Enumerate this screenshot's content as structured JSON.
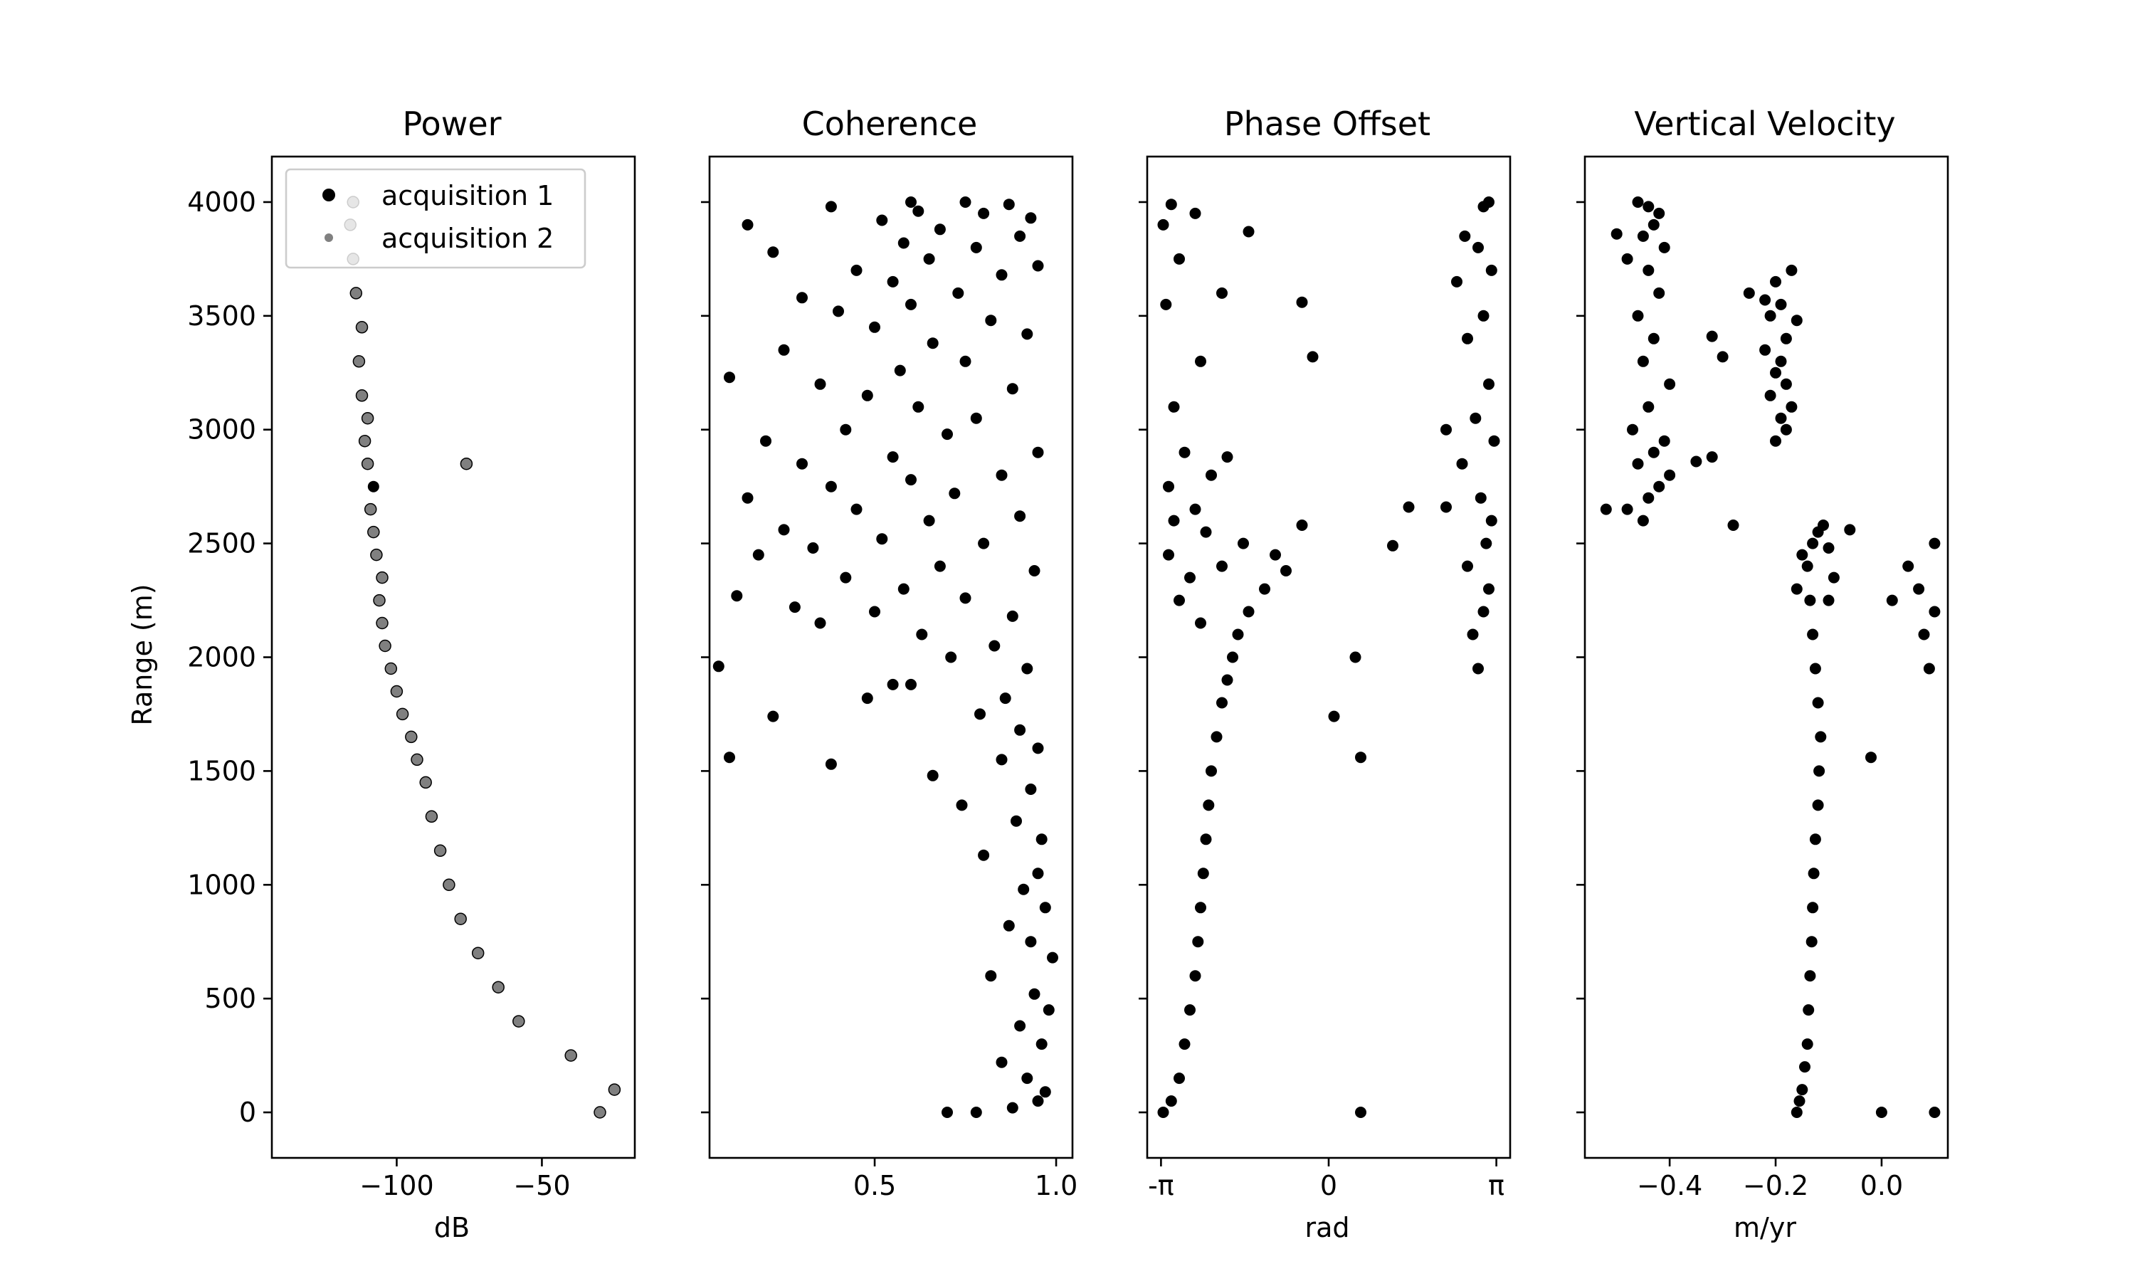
{
  "chart_data": [
    {
      "type": "scatter",
      "title": "Power",
      "xlabel": "dB",
      "ylabel": "Range (m)",
      "xlim": [
        -143,
        -18
      ],
      "ylim": [
        4200,
        -200
      ],
      "xticks": [
        -100,
        -50
      ],
      "xtick_labels": [
        "−100",
        "−50"
      ],
      "yticks": [
        0,
        500,
        1000,
        1500,
        2000,
        2500,
        3000,
        3500,
        4000
      ],
      "ytick_labels": [
        "0",
        "500",
        "1000",
        "1500",
        "2000",
        "2500",
        "3000",
        "3500",
        "4000"
      ],
      "legend": {
        "position": "top-left",
        "entries": [
          "acquisition 1",
          "acquisition 2"
        ]
      },
      "colors": {
        "acquisition 1": "#000000",
        "acquisition 2": "#808080"
      },
      "series": [
        {
          "name": "acquisition 1",
          "x": [
            -30,
            -25,
            -40,
            -58,
            -65,
            -72,
            -78,
            -82,
            -85,
            -88,
            -90,
            -93,
            -95,
            -98,
            -100,
            -102,
            -104,
            -105,
            -106,
            -105,
            -107,
            -108,
            -109,
            -108,
            -110,
            -111,
            -110,
            -112,
            -113,
            -112,
            -114,
            -115,
            -116,
            -115
          ],
          "y": [
            0,
            100,
            250,
            400,
            550,
            700,
            850,
            1000,
            1150,
            1300,
            1450,
            1550,
            1650,
            1750,
            1850,
            1950,
            2050,
            2150,
            2250,
            2350,
            2450,
            2550,
            2650,
            2750,
            2850,
            2950,
            3050,
            3150,
            3300,
            3450,
            3600,
            3750,
            3900,
            4000
          ]
        },
        {
          "name": "acquisition 2",
          "x": [
            -30,
            -25,
            -40,
            -58,
            -65,
            -72,
            -78,
            -82,
            -85,
            -88,
            -90,
            -93,
            -95,
            -98,
            -100,
            -102,
            -104,
            -105,
            -106,
            -105,
            -107,
            -108,
            -109,
            -76,
            -110,
            -111,
            -110,
            -112,
            -113,
            -112,
            -114,
            -115,
            -116,
            -115
          ],
          "y": [
            0,
            100,
            250,
            400,
            550,
            700,
            850,
            1000,
            1150,
            1300,
            1450,
            1550,
            1650,
            1750,
            1850,
            1950,
            2050,
            2150,
            2250,
            2350,
            2450,
            2550,
            2650,
            2850,
            2850,
            2950,
            3050,
            3150,
            3300,
            3450,
            3600,
            3750,
            3900,
            4000
          ]
        }
      ]
    },
    {
      "type": "scatter",
      "title": "Coherence",
      "xlabel": "",
      "ylabel": "",
      "xlim": [
        0.045,
        1.045
      ],
      "ylim": [
        4200,
        -200
      ],
      "xticks": [
        0.5,
        1.0
      ],
      "xtick_labels": [
        "0.5",
        "1.0"
      ],
      "yticks": [
        0,
        500,
        1000,
        1500,
        2000,
        2500,
        3000,
        3500,
        4000
      ],
      "series": [
        {
          "name": "",
          "x": [
            0.7,
            0.78,
            0.88,
            0.95,
            0.97,
            0.92,
            0.85,
            0.96,
            0.9,
            0.98,
            0.94,
            0.82,
            0.99,
            0.93,
            0.87,
            0.97,
            0.91,
            0.95,
            0.8,
            0.96,
            0.89,
            0.74,
            0.93,
            0.66,
            0.85,
            0.95,
            0.9,
            0.79,
            0.86,
            0.6,
            0.38,
            0.1,
            0.92,
            0.71,
            0.48,
            0.55,
            0.83,
            0.22,
            0.63,
            0.35,
            0.88,
            0.5,
            0.07,
            0.28,
            0.75,
            0.12,
            0.58,
            0.42,
            0.94,
            0.68,
            0.18,
            0.33,
            0.8,
            0.52,
            0.25,
            0.65,
            0.9,
            0.45,
            0.15,
            0.72,
            0.38,
            0.6,
            0.85,
            0.3,
            0.55,
            0.95,
            0.2,
            0.7,
            0.42,
            0.78,
            0.1,
            0.62,
            0.48,
            0.88,
            0.35,
            0.57,
            0.75,
            0.25,
            0.66,
            0.92,
            0.5,
            0.82,
            0.4,
            0.6,
            0.3,
            0.73,
            0.55,
            0.85,
            0.45,
            0.95,
            0.65,
            0.22,
            0.78,
            0.58,
            0.9,
            0.68,
            0.15,
            0.52,
            0.8,
            0.62,
            0.38,
            0.87,
            0.75,
            0.6,
            0.93
          ],
          "y": [
            0,
            0,
            20,
            50,
            90,
            150,
            220,
            300,
            380,
            450,
            520,
            600,
            680,
            750,
            820,
            900,
            980,
            1050,
            1130,
            1200,
            1280,
            1350,
            1420,
            1480,
            1550,
            1600,
            1680,
            1750,
            1820,
            1880,
            1530,
            1560,
            1950,
            2000,
            1820,
            1880,
            2050,
            1740,
            2100,
            2150,
            2180,
            2200,
            1960,
            2220,
            2260,
            2270,
            2300,
            2350,
            2380,
            2400,
            2450,
            2480,
            2500,
            2520,
            2560,
            2600,
            2620,
            2650,
            2700,
            2720,
            2750,
            2780,
            2800,
            2850,
            2880,
            2900,
            2950,
            2980,
            3000,
            3050,
            3230,
            3100,
            3150,
            3180,
            3200,
            3260,
            3300,
            3350,
            3380,
            3420,
            3450,
            3480,
            3520,
            3550,
            3580,
            3600,
            3650,
            3680,
            3700,
            3720,
            3750,
            3780,
            3800,
            3820,
            3850,
            3880,
            3900,
            3920,
            3950,
            3960,
            3980,
            3990,
            4000,
            4000,
            3930
          ]
        }
      ]
    },
    {
      "type": "scatter",
      "title": "Phase Offset",
      "xlabel": "rad",
      "ylabel": "",
      "xlim": [
        -3.4,
        3.4
      ],
      "ylim": [
        4200,
        -200
      ],
      "xticks": [
        -3.14159,
        0,
        3.14159
      ],
      "xtick_labels": [
        "-π",
        "0",
        "π"
      ],
      "yticks": [
        0,
        500,
        1000,
        1500,
        2000,
        2500,
        3000,
        3500,
        4000
      ],
      "series": [
        {
          "name": "",
          "x": [
            -3.1,
            -2.95,
            -2.8,
            -2.7,
            -2.6,
            -2.5,
            -2.45,
            -2.4,
            -2.35,
            -2.3,
            -2.25,
            -2.2,
            -2.1,
            -2.0,
            -1.9,
            -1.8,
            -1.7,
            -2.4,
            -1.5,
            -2.8,
            -1.2,
            -2.6,
            -2.0,
            -3.0,
            -1.6,
            -2.3,
            -1.0,
            -2.9,
            -0.8,
            -2.5,
            0.6,
            2.8,
            0.1,
            0.5,
            2.7,
            2.9,
            3.0,
            2.6,
            2.95,
            -0.5,
            1.5,
            1.2,
            -3.0,
            -2.2,
            2.85,
            3.05,
            -2.7,
            2.5,
            3.1,
            -1.9,
            -0.3,
            2.2,
            -2.9,
            2.75,
            3.0,
            -2.4,
            2.6,
            2.9,
            -3.05,
            -2.0,
            -0.5,
            2.4,
            3.05,
            -2.8,
            2.8,
            2.55,
            -3.1,
            -2.5,
            -1.5,
            2.9,
            3.0,
            -2.95,
            0.6,
            2.2
          ],
          "y": [
            0,
            50,
            150,
            300,
            450,
            600,
            750,
            900,
            1050,
            1200,
            1350,
            1500,
            1650,
            1800,
            1900,
            2000,
            2100,
            2150,
            2200,
            2250,
            2300,
            2350,
            2400,
            2450,
            2500,
            2550,
            2450,
            2600,
            2380,
            2650,
            1560,
            1950,
            1740,
            2000,
            2100,
            2200,
            2300,
            2400,
            2500,
            2580,
            2660,
            2490,
            2750,
            2800,
            2700,
            2600,
            2900,
            2850,
            2950,
            2880,
            3320,
            3000,
            3100,
            3050,
            3200,
            3300,
            3400,
            3500,
            3550,
            3600,
            3560,
            3650,
            3700,
            3750,
            3800,
            3850,
            3900,
            3950,
            3870,
            3980,
            4000,
            3990,
            0,
            2660
          ]
        }
      ]
    },
    {
      "type": "scatter",
      "title": "Vertical Velocity",
      "xlabel": "m/yr",
      "ylabel": "",
      "xlim": [
        -0.56,
        0.125
      ],
      "ylim": [
        4200,
        -200
      ],
      "xticks": [
        -0.4,
        -0.2,
        0.0
      ],
      "xtick_labels": [
        "−0.4",
        "−0.2",
        "0.0"
      ],
      "yticks": [
        0,
        500,
        1000,
        1500,
        2000,
        2500,
        3000,
        3500,
        4000
      ],
      "series": [
        {
          "name": "",
          "x": [
            -0.16,
            -0.155,
            -0.15,
            -0.145,
            -0.14,
            -0.138,
            -0.135,
            -0.132,
            -0.13,
            -0.128,
            -0.125,
            -0.12,
            -0.118,
            -0.115,
            -0.12,
            -0.125,
            -0.13,
            -0.135,
            -0.14,
            -0.13,
            -0.12,
            -0.11,
            -0.15,
            -0.09,
            -0.16,
            -0.1,
            0.0,
            0.1,
            -0.02,
            0.09,
            0.08,
            0.1,
            0.07,
            0.05,
            0.1,
            0.02,
            -0.28,
            -0.45,
            -0.48,
            -0.44,
            -0.42,
            -0.4,
            -0.46,
            -0.43,
            -0.41,
            -0.47,
            -0.44,
            -0.4,
            -0.35,
            -0.32,
            -0.3,
            -0.45,
            -0.43,
            -0.46,
            -0.42,
            -0.44,
            -0.48,
            -0.41,
            -0.45,
            -0.43,
            -0.42,
            -0.46,
            -0.44,
            -0.5,
            -0.52,
            -0.2,
            -0.18,
            -0.19,
            -0.17,
            -0.21,
            -0.18,
            -0.2,
            -0.19,
            -0.22,
            -0.18,
            -0.21,
            -0.19,
            -0.25,
            -0.2,
            -0.17,
            -0.32,
            -0.22,
            -0.16,
            -0.06,
            -0.1
          ],
          "y": [
            0,
            50,
            100,
            200,
            300,
            450,
            600,
            750,
            900,
            1050,
            1200,
            1350,
            1500,
            1650,
            1800,
            1950,
            2100,
            2250,
            2400,
            2500,
            2550,
            2580,
            2450,
            2350,
            2300,
            2250,
            0,
            0,
            1560,
            1950,
            2100,
            2200,
            2300,
            2400,
            2500,
            2250,
            2580,
            2600,
            2650,
            2700,
            2750,
            2800,
            2850,
            2900,
            2950,
            3000,
            3100,
            3200,
            2860,
            2880,
            3320,
            3300,
            3400,
            3500,
            3600,
            3700,
            3750,
            3800,
            3850,
            3900,
            3950,
            4000,
            3980,
            3860,
            2650,
            2950,
            3000,
            3050,
            3100,
            3150,
            3200,
            3250,
            3300,
            3350,
            3400,
            3500,
            3550,
            3600,
            3650,
            3700,
            3410,
            3570,
            3480,
            2560,
            2480
          ]
        }
      ]
    }
  ]
}
